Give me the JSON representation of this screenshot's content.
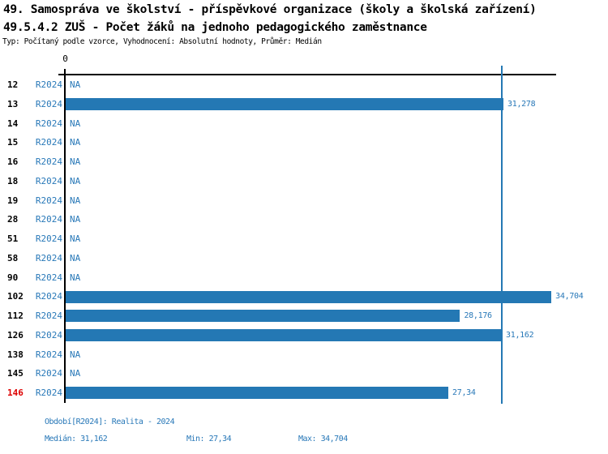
{
  "header": {
    "title_line1": "49. Samospráva ve školství - příspěvkové organizace (školy a školská zařízení)",
    "title_line2": "49.5.4.2 ZUŠ - Počet žáků na jednoho pedagogického zaměstnance",
    "meta": "Typ: Počítaný podle vzorce, Vyhodnocení: Absolutní hodnoty, Průměr: Medián"
  },
  "colors": {
    "bar": "#2478b4",
    "blue_text": "#2878b8",
    "highlight_red": "#dd0000",
    "axis": "#000000"
  },
  "chart_data": {
    "type": "bar",
    "orientation": "horizontal",
    "categories": [
      "12",
      "13",
      "14",
      "15",
      "16",
      "18",
      "19",
      "28",
      "51",
      "58",
      "90",
      "102",
      "112",
      "126",
      "138",
      "145",
      "146"
    ],
    "series": [
      {
        "name": "R2024",
        "values": [
          null,
          31.278,
          null,
          null,
          null,
          null,
          null,
          null,
          null,
          null,
          null,
          34.704,
          28.176,
          31.162,
          null,
          null,
          27.34
        ],
        "value_labels": [
          "NA",
          "31,278",
          "NA",
          "NA",
          "NA",
          "NA",
          "NA",
          "NA",
          "NA",
          "NA",
          "NA",
          "34,704",
          "28,176",
          "31,162",
          "NA",
          "NA",
          "27,34"
        ]
      }
    ],
    "na_label": "NA",
    "xlim": [
      0,
      35
    ],
    "x_tick_labels": [
      "0"
    ],
    "median_line_value": 31.162,
    "highlighted_category": "146",
    "grid": false,
    "legend": false
  },
  "axis": {
    "zero_label": "0"
  },
  "footer": {
    "period": "Období[R2024]: Realita - 2024",
    "median": "Medián: 31,162",
    "min": "Min: 27,34",
    "max": "Max: 34,704"
  }
}
